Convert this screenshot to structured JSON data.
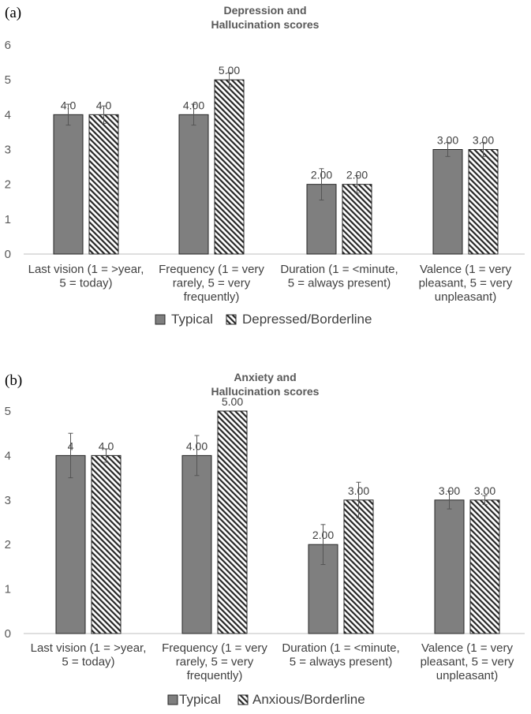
{
  "chart_data": [
    {
      "type": "bar",
      "panel_label": "(a)",
      "title": [
        "Depression and",
        "Hallucination scores"
      ],
      "ylim": [
        0,
        6
      ],
      "yticks": [
        0,
        1,
        2,
        3,
        4,
        5,
        6
      ],
      "categories": [
        [
          "Last vision (1 = >year,",
          "5 = today)"
        ],
        [
          "Frequency (1 = very",
          "rarely, 5 = very",
          "frequently)"
        ],
        [
          "Duration (1 = <minute,",
          "5 = always present)"
        ],
        [
          "Valence (1 = very",
          "pleasant, 5 = very",
          "unpleasant)"
        ]
      ],
      "series": [
        {
          "name": "Typical",
          "pattern": "solid",
          "values": [
            4,
            4,
            2,
            3
          ],
          "labels": [
            "4.0",
            "4.00",
            "2.00",
            "3.00"
          ],
          "err": [
            0.3,
            0.3,
            0.45,
            0.2
          ]
        },
        {
          "name": "Depressed/Borderline",
          "pattern": "hatch",
          "values": [
            4,
            5,
            2,
            3
          ],
          "labels": [
            "4.0",
            "5.00",
            "2.00",
            "3.00"
          ],
          "err": [
            0.25,
            0.2,
            0.25,
            0.2
          ]
        }
      ],
      "legend_position": "bottom",
      "colors": {
        "bar": "#7f7f7f",
        "edge": "#262626",
        "axis": "#bfbfbf"
      }
    },
    {
      "type": "bar",
      "panel_label": "(b)",
      "title": [
        "Anxiety and",
        "Hallucination scores"
      ],
      "ylim": [
        0,
        5
      ],
      "yticks": [
        0,
        1,
        2,
        3,
        4,
        5
      ],
      "categories": [
        [
          "Last vision (1 = >year,",
          "5 = today)"
        ],
        [
          "Frequency (1 = very",
          "rarely, 5 = very",
          "frequently)"
        ],
        [
          "Duration (1 = <minute,",
          "5 = always present)"
        ],
        [
          "Valence (1 = very",
          "pleasant, 5 = very",
          "unpleasant)"
        ]
      ],
      "series": [
        {
          "name": "Typical",
          "pattern": "solid",
          "values": [
            4,
            4,
            2,
            3
          ],
          "labels": [
            "4",
            "4.00",
            "2.00",
            "3.00"
          ],
          "err": [
            0.5,
            0.45,
            0.45,
            0.2
          ]
        },
        {
          "name": "Anxious/Borderline",
          "pattern": "hatch",
          "values": [
            4,
            5,
            3,
            3
          ],
          "labels": [
            "4.0",
            "5.00",
            "3.00",
            "3.00"
          ],
          "err": [
            0.15,
            0,
            0.4,
            0.1
          ]
        }
      ],
      "legend_position": "bottom",
      "colors": {
        "bar": "#7f7f7f",
        "edge": "#262626",
        "axis": "#bfbfbf"
      }
    }
  ]
}
